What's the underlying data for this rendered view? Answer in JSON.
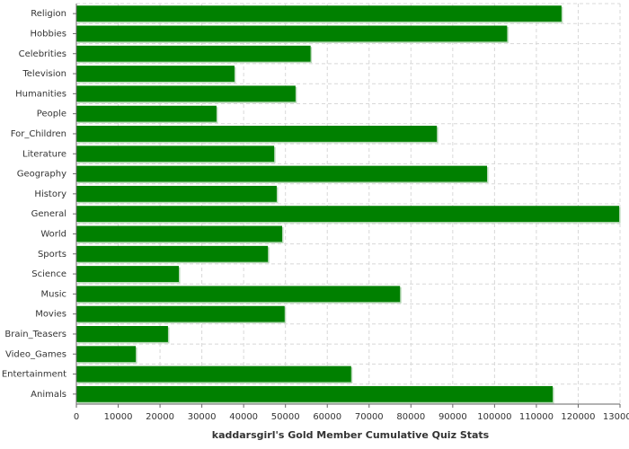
{
  "chart_data": {
    "type": "hbar",
    "title": "kaddarsgirl's Gold Member Cumulative Quiz Stats",
    "categories": [
      "Religion",
      "Hobbies",
      "Celebrities",
      "Television",
      "Humanities",
      "People",
      "For_Children",
      "Literature",
      "Geography",
      "History",
      "General",
      "World",
      "Sports",
      "Science",
      "Music",
      "Movies",
      "Brain_Teasers",
      "Video_Games",
      "Entertainment",
      "Animals"
    ],
    "values": [
      116000,
      103000,
      56000,
      37800,
      52400,
      33500,
      86200,
      47300,
      98200,
      47900,
      129800,
      49200,
      45800,
      24500,
      77400,
      49800,
      21900,
      14200,
      65700,
      113900
    ],
    "color": "#008000",
    "xlim": [
      0,
      130000
    ],
    "xticks": [
      0,
      10000,
      20000,
      30000,
      40000,
      50000,
      60000,
      70000,
      80000,
      90000,
      100000,
      110000,
      120000,
      130000
    ],
    "grid": true
  }
}
